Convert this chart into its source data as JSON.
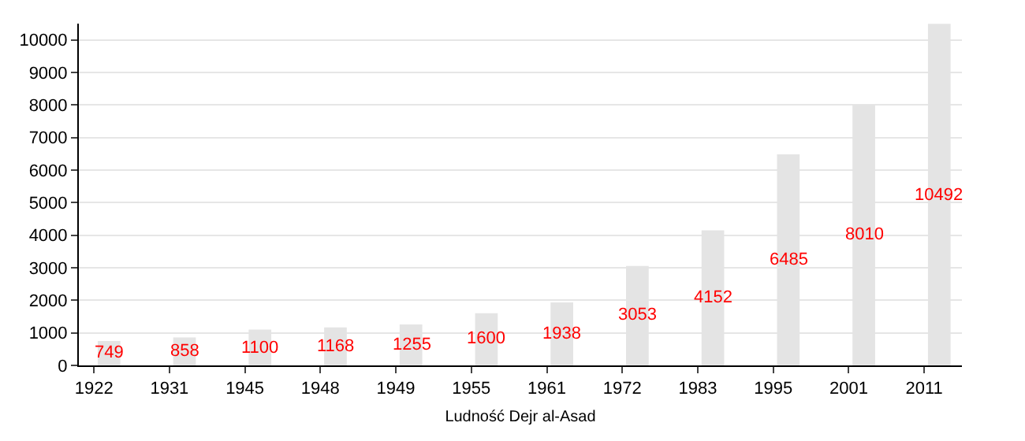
{
  "chart_data": {
    "type": "bar",
    "xlabel": "Ludność Dejr al-Asad",
    "categories": [
      "1922",
      "1931",
      "1945",
      "1948",
      "1949",
      "1955",
      "1961",
      "1972",
      "1983",
      "1995",
      "2001",
      "2011"
    ],
    "values": [
      749,
      858,
      1100,
      1168,
      1255,
      1600,
      1938,
      3053,
      4152,
      6485,
      8010,
      10492
    ],
    "color": "#e4e4e4",
    "ylim": [
      0,
      10500
    ],
    "yticks": [
      0,
      1000,
      2000,
      3000,
      4000,
      5000,
      6000,
      7000,
      8000,
      9000,
      10000
    ],
    "grid": "y",
    "data_labels": true,
    "legend": false
  }
}
